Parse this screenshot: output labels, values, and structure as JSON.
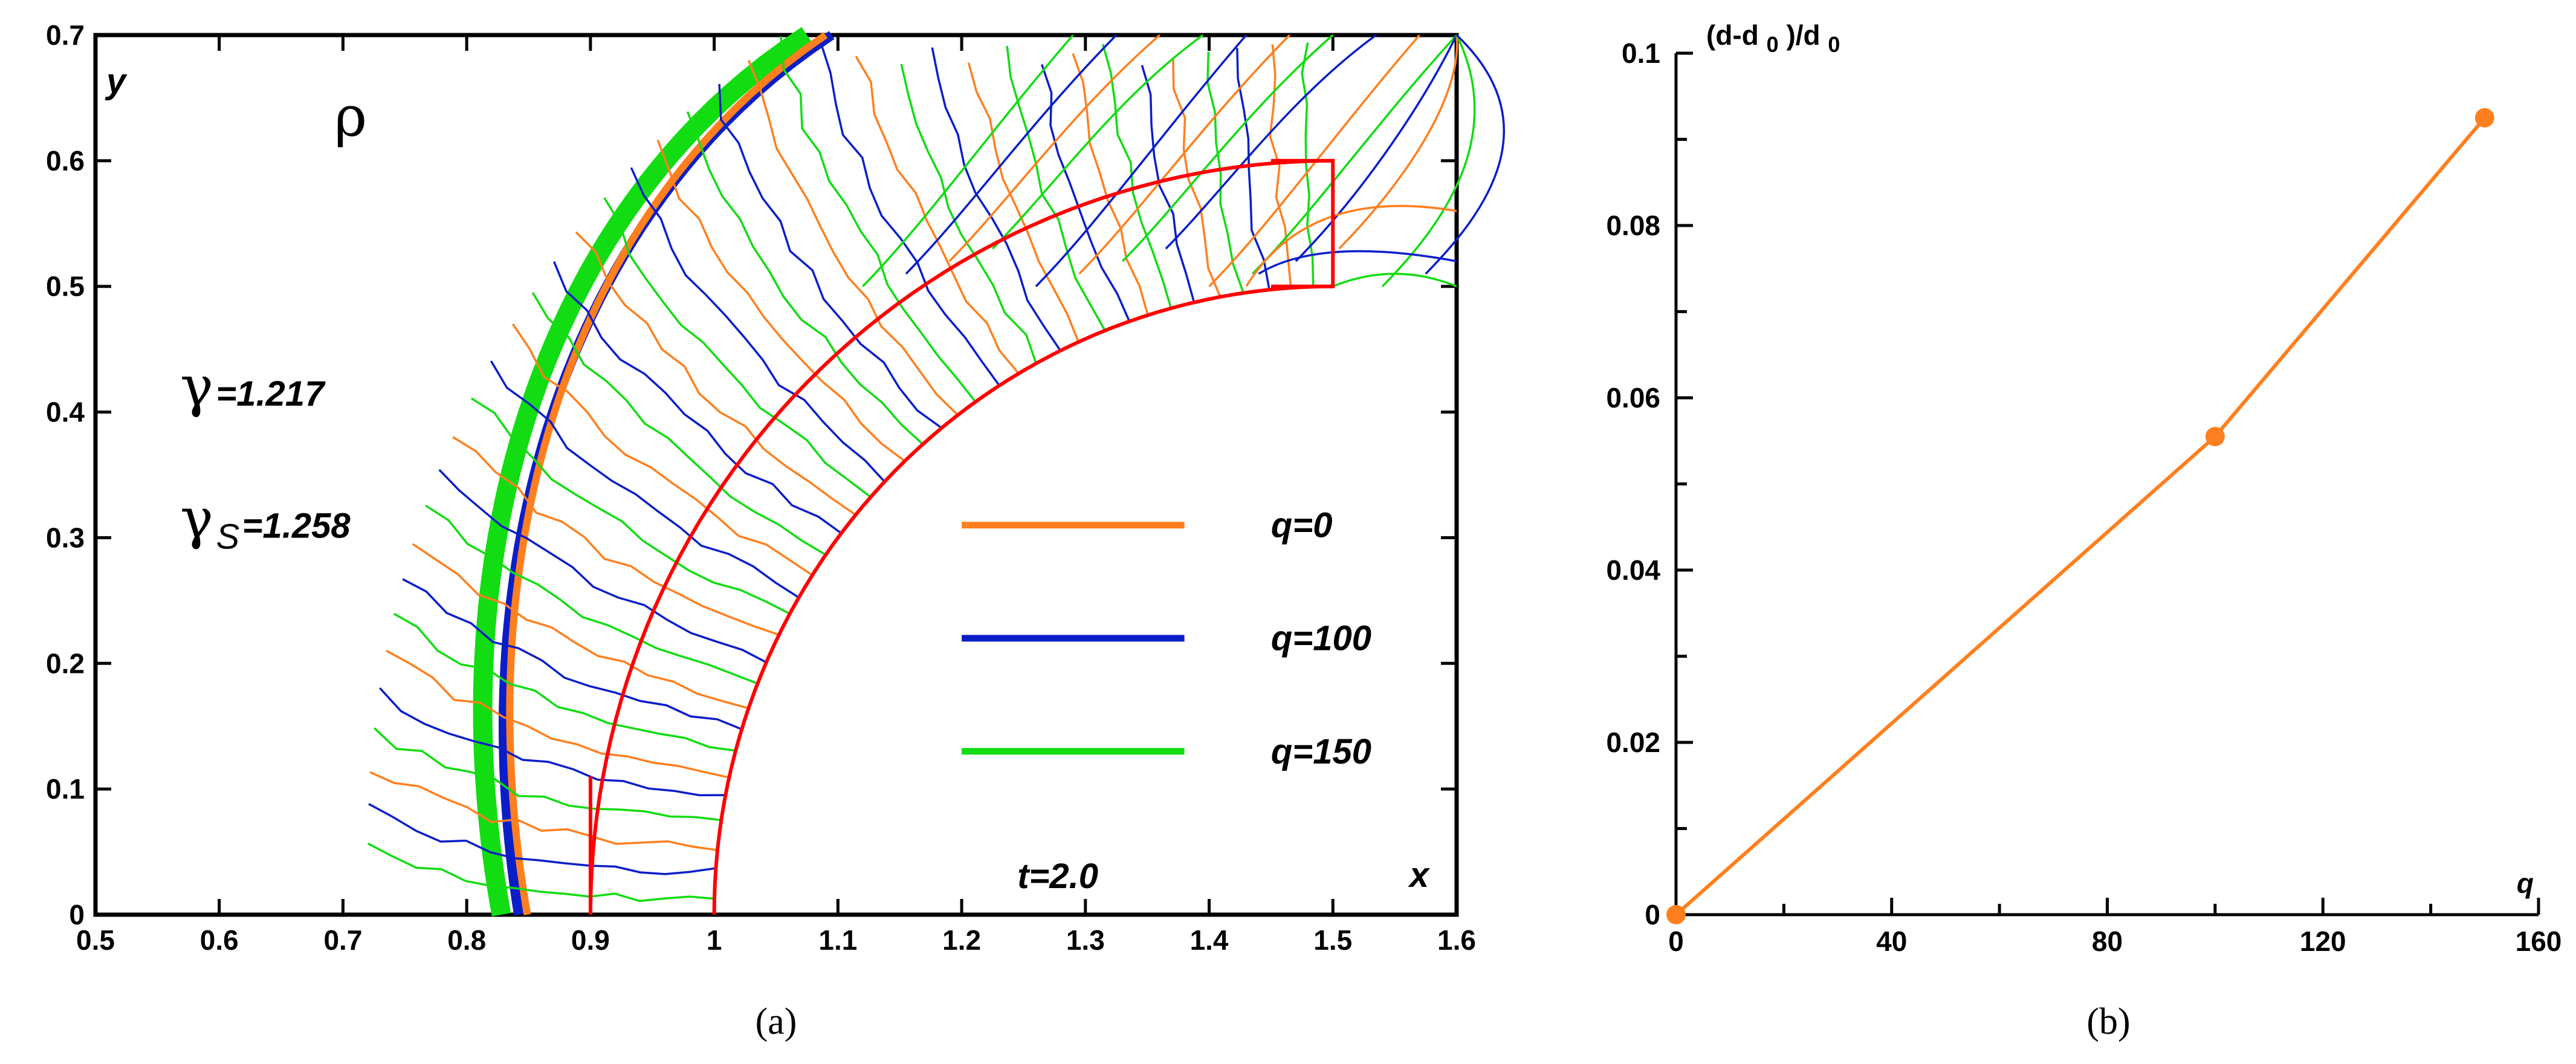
{
  "chart_data": [
    {
      "type": "line",
      "panel": "a",
      "caption": "(a)",
      "title": "",
      "quantity_label": "ρ",
      "xlabel": "x",
      "ylabel": "y",
      "xlim": [
        0.5,
        1.6
      ],
      "ylim": [
        0,
        0.7
      ],
      "x_ticks": [
        "0.5",
        "0.6",
        "0.7",
        "0.8",
        "0.9",
        "1",
        "1.1",
        "1.2",
        "1.3",
        "1.4",
        "1.5",
        "1.6"
      ],
      "y_ticks": [
        "0",
        "0.1",
        "0.2",
        "0.3",
        "0.4",
        "0.5",
        "0.6",
        "0.7"
      ],
      "params": {
        "gamma_symbol": "γ",
        "gamma_value": "=1.217",
        "gamma_s_symbol": "γ",
        "gamma_s_sub": "S",
        "gamma_s_value": "=1.258"
      },
      "time_label": "t=2.0",
      "legend": [
        {
          "label": "q=0",
          "color": "#FF7F1E"
        },
        {
          "label": "q=100",
          "color": "#0A1EC8"
        },
        {
          "label": "q=150",
          "color": "#12DC12"
        }
      ],
      "shock_front": {
        "q0_x_at_y0": 0.845,
        "q100_x_at_y0": 0.84,
        "q150_x_at_y0": 0.83,
        "x_at_y_max": [
          1.1,
          1.1,
          1.08
        ]
      },
      "body": {
        "description": "red-outlined region",
        "color": "#FF0000",
        "inner_radius": 0.5,
        "outer_radius": 0.6,
        "center": [
          1.5,
          0
        ],
        "corner_box": {
          "x": [
            1.45,
            1.5
          ],
          "y": [
            0.5,
            0.6
          ]
        }
      }
    },
    {
      "type": "line",
      "panel": "b",
      "caption": "(b)",
      "title": "",
      "xlabel": "q",
      "ylabel": "(d-d0)/d0",
      "ylabel_parts": {
        "a": "(d-d",
        "b": "0",
        "c": ")/d",
        "d": "0"
      },
      "xlim": [
        0,
        160
      ],
      "ylim": [
        0,
        0.1
      ],
      "x_ticks": [
        "0",
        "40",
        "80",
        "120",
        "160"
      ],
      "y_ticks": [
        "0",
        "0.02",
        "0.04",
        "0.06",
        "0.08",
        "0.1"
      ],
      "series": [
        {
          "name": "(d-d0)/d0",
          "color": "#FF7F1E",
          "x": [
            0,
            100,
            150
          ],
          "y": [
            0,
            0.0555,
            0.0925
          ]
        }
      ]
    }
  ]
}
